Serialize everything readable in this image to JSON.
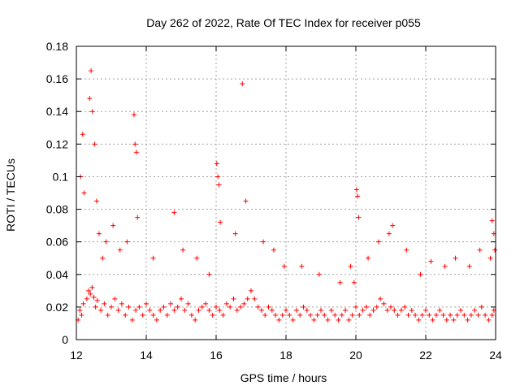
{
  "chart_data": {
    "type": "scatter",
    "title": "Day 262 of 2022, Rate Of TEC Index for receiver p055",
    "xlabel": "GPS time / hours",
    "ylabel": "ROTI / TECUs",
    "xlim": [
      12,
      24
    ],
    "ylim": [
      0,
      0.18
    ],
    "xticks": [
      12,
      14,
      16,
      18,
      20,
      22,
      24
    ],
    "xtick_labels": [
      "12",
      "14",
      "16",
      "18",
      "20",
      "22",
      "24"
    ],
    "yticks": [
      0,
      0.02,
      0.04,
      0.06,
      0.08,
      0.1,
      0.12,
      0.14,
      0.16,
      0.18
    ],
    "ytick_labels": [
      "0",
      "0.02",
      "0.04",
      "0.06",
      "0.08",
      "0.1",
      "0.12",
      "0.14",
      "0.16",
      "0.18"
    ],
    "grid": true,
    "legend": "none",
    "marker": "+",
    "marker_color": "#ff0000",
    "series": [
      {
        "name": "p055",
        "x": [
          12.05,
          12.1,
          12.15,
          12.2,
          12.3,
          12.35,
          12.4,
          12.45,
          12.5,
          12.55,
          12.6,
          12.7,
          12.8,
          12.9,
          13.0,
          13.1,
          13.2,
          13.3,
          13.4,
          13.5,
          13.6,
          13.7,
          13.8,
          13.9,
          14.0,
          14.1,
          14.2,
          14.3,
          14.4,
          14.5,
          14.6,
          14.7,
          14.8,
          14.9,
          15.0,
          15.1,
          15.2,
          15.3,
          15.4,
          15.5,
          15.6,
          15.7,
          15.8,
          15.9,
          16.0,
          16.1,
          16.2,
          16.3,
          16.4,
          16.5,
          16.6,
          16.7,
          16.8,
          16.9,
          17.0,
          17.1,
          17.2,
          17.3,
          17.4,
          17.5,
          17.6,
          17.7,
          17.8,
          17.9,
          18.0,
          18.1,
          18.2,
          18.3,
          18.4,
          18.5,
          18.6,
          18.7,
          18.8,
          18.9,
          19.0,
          19.1,
          19.2,
          19.3,
          19.4,
          19.5,
          19.6,
          19.7,
          19.8,
          19.9,
          20.0,
          20.1,
          20.2,
          20.3,
          20.4,
          20.5,
          20.6,
          20.7,
          20.8,
          20.9,
          21.0,
          21.1,
          21.2,
          21.3,
          21.4,
          21.5,
          21.6,
          21.7,
          21.8,
          21.9,
          22.0,
          22.1,
          22.2,
          22.3,
          22.4,
          22.5,
          22.6,
          22.7,
          22.8,
          22.9,
          23.0,
          23.1,
          23.2,
          23.3,
          23.4,
          23.5,
          23.6,
          23.7,
          23.8,
          23.9,
          23.95,
          12.12,
          12.18,
          12.22,
          12.38,
          12.42,
          12.46,
          12.52,
          12.58,
          12.65,
          12.75,
          12.85,
          13.05,
          13.25,
          13.45,
          13.65,
          13.68,
          13.72,
          13.75,
          14.2,
          14.8,
          15.05,
          15.45,
          15.8,
          16.02,
          16.05,
          16.08,
          16.12,
          16.55,
          16.75,
          16.85,
          17.35,
          17.65,
          17.95,
          18.45,
          18.95,
          19.55,
          19.85,
          19.95,
          20.02,
          20.05,
          20.08,
          20.35,
          20.65,
          20.95,
          21.05,
          21.45,
          21.85,
          22.15,
          22.55,
          22.85,
          23.25,
          23.55,
          23.85,
          23.9,
          23.95,
          23.98
        ],
        "y": [
          0.012,
          0.018,
          0.015,
          0.022,
          0.025,
          0.03,
          0.028,
          0.032,
          0.026,
          0.02,
          0.024,
          0.018,
          0.022,
          0.015,
          0.02,
          0.025,
          0.018,
          0.022,
          0.015,
          0.02,
          0.012,
          0.018,
          0.02,
          0.015,
          0.022,
          0.018,
          0.015,
          0.012,
          0.018,
          0.02,
          0.015,
          0.022,
          0.018,
          0.02,
          0.025,
          0.018,
          0.022,
          0.015,
          0.012,
          0.018,
          0.02,
          0.022,
          0.018,
          0.015,
          0.02,
          0.018,
          0.015,
          0.022,
          0.02,
          0.025,
          0.018,
          0.02,
          0.022,
          0.025,
          0.03,
          0.025,
          0.02,
          0.018,
          0.015,
          0.02,
          0.018,
          0.015,
          0.012,
          0.015,
          0.018,
          0.015,
          0.012,
          0.018,
          0.015,
          0.02,
          0.018,
          0.015,
          0.012,
          0.015,
          0.018,
          0.015,
          0.012,
          0.018,
          0.015,
          0.012,
          0.015,
          0.018,
          0.012,
          0.015,
          0.02,
          0.015,
          0.018,
          0.02,
          0.015,
          0.018,
          0.02,
          0.025,
          0.022,
          0.018,
          0.02,
          0.018,
          0.015,
          0.018,
          0.02,
          0.015,
          0.018,
          0.015,
          0.012,
          0.015,
          0.018,
          0.015,
          0.012,
          0.015,
          0.018,
          0.015,
          0.012,
          0.015,
          0.012,
          0.015,
          0.018,
          0.015,
          0.012,
          0.015,
          0.018,
          0.015,
          0.02,
          0.015,
          0.012,
          0.015,
          0.018,
          0.1,
          0.126,
          0.09,
          0.148,
          0.165,
          0.14,
          0.12,
          0.085,
          0.065,
          0.05,
          0.06,
          0.07,
          0.055,
          0.06,
          0.138,
          0.12,
          0.115,
          0.075,
          0.05,
          0.078,
          0.055,
          0.05,
          0.04,
          0.108,
          0.1,
          0.095,
          0.072,
          0.065,
          0.157,
          0.085,
          0.06,
          0.055,
          0.045,
          0.045,
          0.04,
          0.035,
          0.045,
          0.035,
          0.092,
          0.088,
          0.075,
          0.05,
          0.06,
          0.065,
          0.07,
          0.055,
          0.04,
          0.048,
          0.045,
          0.05,
          0.045,
          0.055,
          0.05,
          0.073,
          0.065,
          0.055
        ]
      }
    ]
  }
}
